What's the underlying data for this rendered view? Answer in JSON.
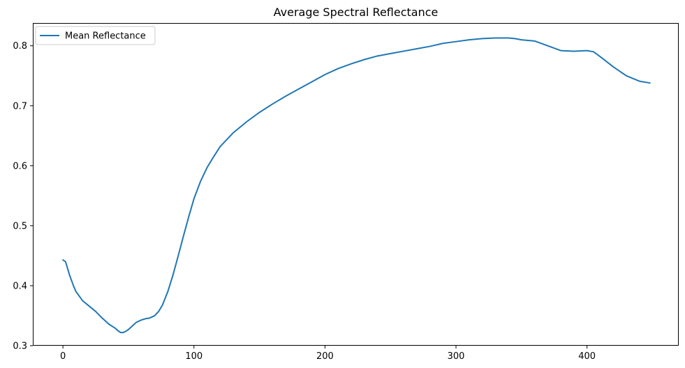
{
  "chart_data": {
    "type": "line",
    "title": "Average Spectral Reflectance",
    "xlabel": "",
    "ylabel": "",
    "xlim": [
      -23,
      470
    ],
    "ylim": [
      0.3,
      0.838
    ],
    "x_ticks": [
      0,
      100,
      200,
      300,
      400
    ],
    "y_ticks": [
      0.3,
      0.4,
      0.5,
      0.6,
      0.7,
      0.8
    ],
    "x_tick_labels": [
      "0",
      "100",
      "200",
      "300",
      "400"
    ],
    "y_tick_labels": [
      "0.3",
      "0.4",
      "0.5",
      "0.6",
      "0.7",
      "0.8"
    ],
    "grid": false,
    "legend_position": "upper left",
    "colors": {
      "series": "#1f77b4"
    },
    "series": [
      {
        "name": "Mean Reflectance",
        "x": [
          0,
          2,
          5,
          8,
          10,
          15,
          20,
          25,
          30,
          35,
          40,
          42,
          44,
          46,
          48,
          50,
          53,
          56,
          60,
          63,
          66,
          70,
          73,
          76,
          80,
          84,
          88,
          92,
          96,
          100,
          105,
          110,
          115,
          120,
          130,
          140,
          150,
          160,
          170,
          180,
          190,
          200,
          210,
          220,
          230,
          240,
          250,
          260,
          270,
          280,
          290,
          300,
          310,
          320,
          330,
          340,
          345,
          350,
          360,
          370,
          380,
          390,
          400,
          405,
          410,
          420,
          430,
          440,
          448
        ],
        "y": [
          0.443,
          0.44,
          0.418,
          0.4,
          0.39,
          0.375,
          0.366,
          0.357,
          0.346,
          0.336,
          0.329,
          0.325,
          0.322,
          0.322,
          0.324,
          0.327,
          0.333,
          0.339,
          0.343,
          0.345,
          0.346,
          0.35,
          0.357,
          0.368,
          0.39,
          0.418,
          0.45,
          0.483,
          0.515,
          0.545,
          0.574,
          0.597,
          0.615,
          0.632,
          0.655,
          0.673,
          0.689,
          0.703,
          0.716,
          0.728,
          0.74,
          0.752,
          0.762,
          0.77,
          0.777,
          0.783,
          0.787,
          0.791,
          0.795,
          0.799,
          0.804,
          0.807,
          0.81,
          0.812,
          0.813,
          0.813,
          0.812,
          0.81,
          0.808,
          0.8,
          0.792,
          0.791,
          0.792,
          0.79,
          0.782,
          0.765,
          0.75,
          0.741,
          0.738
        ]
      }
    ]
  }
}
